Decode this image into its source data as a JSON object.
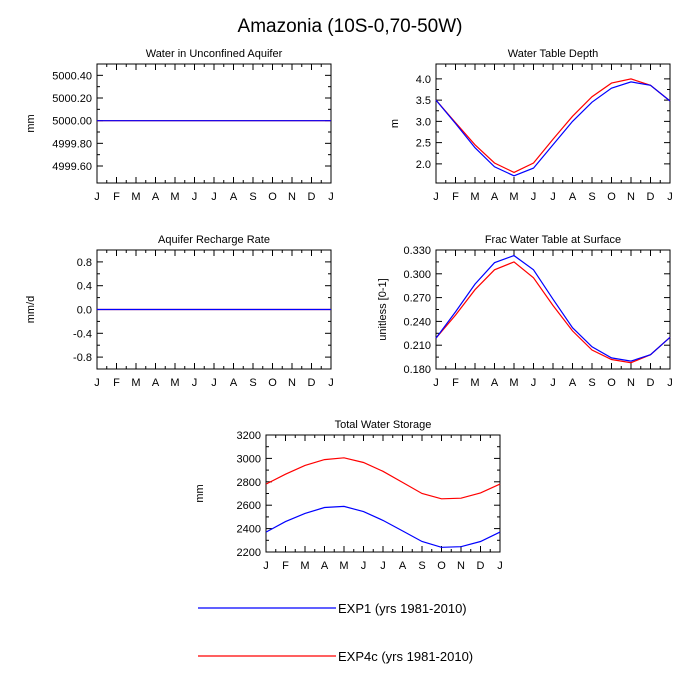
{
  "page": {
    "title": "Amazonia (10S-0,70-50W)"
  },
  "months": [
    "J",
    "F",
    "M",
    "A",
    "M",
    "J",
    "J",
    "A",
    "S",
    "O",
    "N",
    "D",
    "J"
  ],
  "colors": {
    "exp1": "#0000ff",
    "exp4c": "#ff0000"
  },
  "legend": [
    {
      "label": "EXP1 (yrs 1981-2010)",
      "color": "#0000ff"
    },
    {
      "label": "EXP4c (yrs 1981-2010)",
      "color": "#ff0000"
    }
  ],
  "chart_data": [
    {
      "type": "line",
      "title": "Water in Unconfined Aquifer",
      "ylabel": "mm",
      "x": [
        "J",
        "F",
        "M",
        "A",
        "M",
        "J",
        "J",
        "A",
        "S",
        "O",
        "N",
        "D",
        "J"
      ],
      "ylim": [
        4999.45,
        5000.5
      ],
      "yticks": [
        4999.6,
        4999.8,
        5000.0,
        5000.2,
        5000.4
      ],
      "ytick_labels": [
        "4999.60",
        "4999.80",
        "5000.00",
        "5000.20",
        "5000.40"
      ],
      "series": [
        {
          "name": "EXP1 (yrs 1981-2010)",
          "color": "#0000ff",
          "values": [
            5000,
            5000,
            5000,
            5000,
            5000,
            5000,
            5000,
            5000,
            5000,
            5000,
            5000,
            5000,
            5000
          ]
        },
        {
          "name": "EXP4c (yrs 1981-2010)",
          "color": "#ff0000",
          "values": [
            5000,
            5000,
            5000,
            5000,
            5000,
            5000,
            5000,
            5000,
            5000,
            5000,
            5000,
            5000,
            5000
          ]
        }
      ]
    },
    {
      "type": "line",
      "title": "Water Table Depth",
      "ylabel": "m",
      "x": [
        "J",
        "F",
        "M",
        "A",
        "M",
        "J",
        "J",
        "A",
        "S",
        "O",
        "N",
        "D",
        "J"
      ],
      "ylim": [
        1.55,
        4.35
      ],
      "yticks": [
        2.0,
        2.5,
        3.0,
        3.5,
        4.0
      ],
      "ytick_labels": [
        "2.0",
        "2.5",
        "3.0",
        "3.5",
        "4.0"
      ],
      "series": [
        {
          "name": "EXP1 (yrs 1981-2010)",
          "color": "#0000ff",
          "values": [
            3.5,
            2.95,
            2.38,
            1.93,
            1.72,
            1.9,
            2.45,
            3.0,
            3.45,
            3.78,
            3.93,
            3.85,
            3.48
          ]
        },
        {
          "name": "EXP4c (yrs 1981-2010)",
          "color": "#ff0000",
          "values": [
            3.5,
            2.97,
            2.45,
            2.02,
            1.8,
            2.02,
            2.58,
            3.12,
            3.58,
            3.9,
            4.0,
            3.85,
            3.48
          ]
        }
      ]
    },
    {
      "type": "line",
      "title": "Aquifer Recharge Rate",
      "ylabel": "mm/d",
      "x": [
        "J",
        "F",
        "M",
        "A",
        "M",
        "J",
        "J",
        "A",
        "S",
        "O",
        "N",
        "D",
        "J"
      ],
      "ylim": [
        -1.0,
        1.0
      ],
      "yticks": [
        -0.8,
        -0.4,
        0.0,
        0.4,
        0.8
      ],
      "ytick_labels": [
        "-0.8",
        "-0.4",
        "0.0",
        "0.4",
        "0.8"
      ],
      "series": [
        {
          "name": "EXP1 (yrs 1981-2010)",
          "color": "#0000ff",
          "values": [
            0,
            0,
            0,
            0,
            0,
            0,
            0,
            0,
            0,
            0,
            0,
            0,
            0
          ]
        },
        {
          "name": "EXP4c (yrs 1981-2010)",
          "color": "#ff0000",
          "values": [
            0,
            0,
            0,
            0,
            0,
            0,
            0,
            0,
            0,
            0,
            0,
            0,
            0
          ]
        }
      ]
    },
    {
      "type": "line",
      "title": "Frac Water Table at Surface",
      "ylabel": "unitless [0-1]",
      "x": [
        "J",
        "F",
        "M",
        "A",
        "M",
        "J",
        "J",
        "A",
        "S",
        "O",
        "N",
        "D",
        "J"
      ],
      "ylim": [
        0.18,
        0.33
      ],
      "yticks": [
        0.18,
        0.21,
        0.24,
        0.27,
        0.3,
        0.33
      ],
      "ytick_labels": [
        "0.180",
        "0.210",
        "0.240",
        "0.270",
        "0.300",
        "0.330"
      ],
      "series": [
        {
          "name": "EXP1 (yrs 1981-2010)",
          "color": "#0000ff",
          "values": [
            0.219,
            0.252,
            0.287,
            0.314,
            0.323,
            0.305,
            0.268,
            0.232,
            0.208,
            0.194,
            0.19,
            0.198,
            0.22
          ]
        },
        {
          "name": "EXP4c (yrs 1981-2010)",
          "color": "#ff0000",
          "values": [
            0.219,
            0.248,
            0.28,
            0.305,
            0.315,
            0.295,
            0.26,
            0.228,
            0.204,
            0.192,
            0.188,
            0.198,
            0.22
          ]
        }
      ]
    },
    {
      "type": "line",
      "title": "Total Water Storage",
      "ylabel": "mm",
      "x": [
        "J",
        "F",
        "M",
        "A",
        "M",
        "J",
        "J",
        "A",
        "S",
        "O",
        "N",
        "D",
        "J"
      ],
      "ylim": [
        2200,
        3200
      ],
      "yticks": [
        2200,
        2400,
        2600,
        2800,
        3000,
        3200
      ],
      "ytick_labels": [
        "2200",
        "2400",
        "2600",
        "2800",
        "3000",
        "3200"
      ],
      "series": [
        {
          "name": "EXP1 (yrs 1981-2010)",
          "color": "#0000ff",
          "values": [
            2370,
            2460,
            2530,
            2580,
            2590,
            2545,
            2470,
            2380,
            2290,
            2240,
            2245,
            2290,
            2370
          ]
        },
        {
          "name": "EXP4c (yrs 1981-2010)",
          "color": "#ff0000",
          "values": [
            2780,
            2865,
            2940,
            2990,
            3005,
            2965,
            2890,
            2795,
            2700,
            2655,
            2660,
            2705,
            2780
          ]
        }
      ]
    }
  ]
}
